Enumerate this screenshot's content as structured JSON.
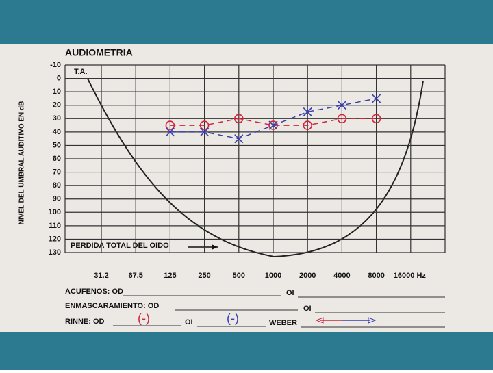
{
  "chart_data": {
    "type": "line",
    "title": "AUDIOMETRIA",
    "ylabel": "NIVEL DEL UMBRAL AUDITIVO EN dB",
    "annotations": [
      "T.A.",
      "PERDIDA TOTAL DEL OIDO"
    ],
    "categories": [
      "31.2",
      "67.5",
      "125",
      "250",
      "500",
      "1000",
      "2000",
      "4000",
      "8000",
      "16000 Hz"
    ],
    "series": [
      {
        "name": "OD",
        "color": "#d0253a",
        "marker": "circle",
        "values": [
          null,
          null,
          35,
          35,
          30,
          35,
          35,
          30,
          30,
          null
        ]
      },
      {
        "name": "OI",
        "color": "#3a3fb0",
        "marker": "x",
        "values": [
          null,
          null,
          40,
          40,
          45,
          35,
          25,
          20,
          15,
          null
        ]
      }
    ],
    "ylim": [
      -10,
      130
    ],
    "yticks": [
      -10,
      0,
      10,
      20,
      30,
      40,
      50,
      60,
      70,
      80,
      90,
      100,
      110,
      120,
      130
    ],
    "y_inverted": true,
    "grid": true,
    "legend": false
  },
  "form": {
    "acufenos": {
      "label": "ACUFENOS: OD",
      "oi": "OI"
    },
    "enmascaramiento": {
      "label": "ENMASCARAMIENTO: OD",
      "oi": "OI"
    },
    "rinne": {
      "label": "RINNE: OD",
      "od_value": "(-)",
      "oi": "OI",
      "oi_value": "(-)"
    },
    "weber": {
      "label": "WEBER"
    }
  }
}
